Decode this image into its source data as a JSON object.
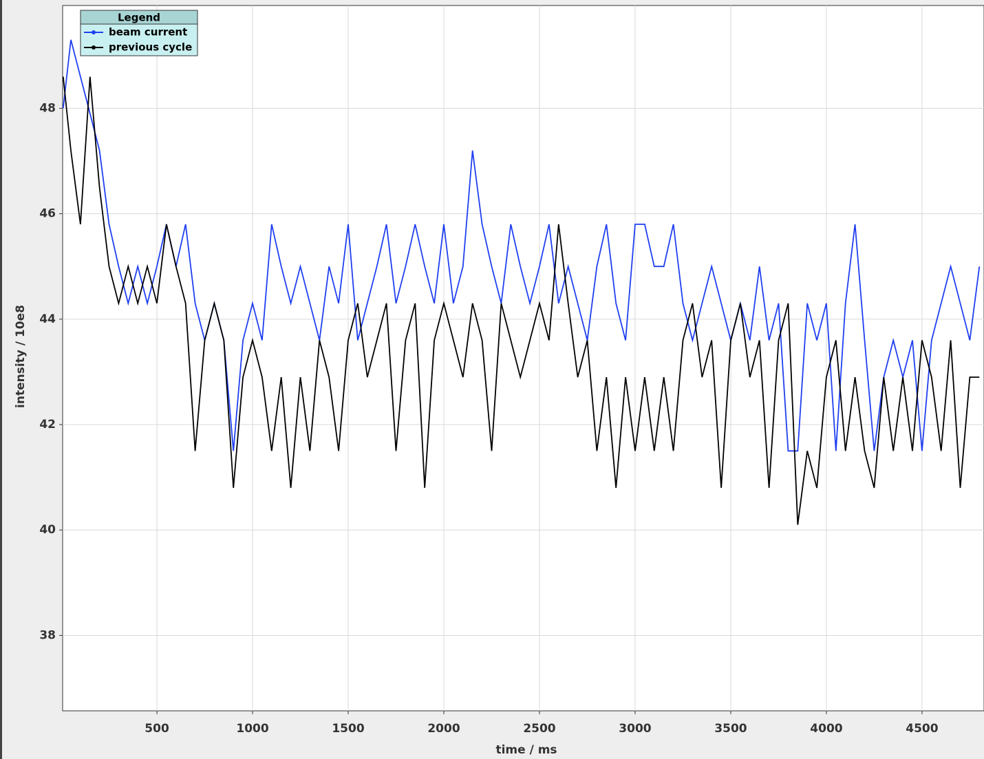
{
  "chart_data": {
    "type": "line",
    "x_label": "time / ms",
    "y_label": "intensity / 10e8",
    "legend_title": "Legend",
    "legend": "upper left",
    "grid": true,
    "xlim": [
      7,
      4824
    ],
    "ylim": [
      36.57,
      49.95
    ],
    "xticks": [
      500,
      1000,
      1500,
      2000,
      2500,
      3000,
      3500,
      4000,
      4500
    ],
    "yticks": [
      38,
      40,
      42,
      44,
      46,
      48
    ],
    "x": [
      10,
      50,
      100,
      150,
      200,
      250,
      300,
      350,
      400,
      450,
      500,
      550,
      600,
      650,
      700,
      750,
      800,
      850,
      900,
      950,
      1000,
      1050,
      1100,
      1150,
      1200,
      1250,
      1300,
      1350,
      1400,
      1450,
      1500,
      1550,
      1600,
      1650,
      1700,
      1750,
      1800,
      1850,
      1900,
      1950,
      2000,
      2050,
      2100,
      2150,
      2200,
      2250,
      2300,
      2350,
      2400,
      2450,
      2500,
      2550,
      2600,
      2650,
      2700,
      2750,
      2800,
      2850,
      2900,
      2950,
      3000,
      3050,
      3100,
      3150,
      3200,
      3250,
      3300,
      3350,
      3400,
      3450,
      3500,
      3550,
      3600,
      3650,
      3700,
      3750,
      3800,
      3850,
      3900,
      3950,
      4000,
      4050,
      4100,
      4150,
      4200,
      4250,
      4300,
      4350,
      4400,
      4450,
      4500,
      4550,
      4600,
      4650,
      4700,
      4750,
      4800
    ],
    "series": [
      {
        "name": "beam current",
        "color": "#1f3ff0",
        "values": [
          48.0,
          49.3,
          48.6,
          47.9,
          47.2,
          45.8,
          45.0,
          44.3,
          45.0,
          44.3,
          45.0,
          45.8,
          45.0,
          45.8,
          44.3,
          43.6,
          44.3,
          43.6,
          41.5,
          43.6,
          44.3,
          43.6,
          45.8,
          45.0,
          44.3,
          45.0,
          44.3,
          43.6,
          45.0,
          44.3,
          45.8,
          43.6,
          44.3,
          45.0,
          45.8,
          44.3,
          45.0,
          45.8,
          45.0,
          44.3,
          45.8,
          44.3,
          45.0,
          47.2,
          45.8,
          45.0,
          44.3,
          45.8,
          45.0,
          44.3,
          45.0,
          45.8,
          44.3,
          45.0,
          44.3,
          43.6,
          45.0,
          45.8,
          44.3,
          43.6,
          45.8,
          45.8,
          45.0,
          45.0,
          45.8,
          44.3,
          43.6,
          44.3,
          45.0,
          44.3,
          43.6,
          44.3,
          43.6,
          45.0,
          43.6,
          44.3,
          41.5,
          41.5,
          44.3,
          43.6,
          44.3,
          41.5,
          44.3,
          45.8,
          43.6,
          41.5,
          42.9,
          43.6,
          42.9,
          43.6,
          41.5,
          43.6,
          44.3,
          45.0,
          44.3,
          43.6,
          45.0
        ]
      },
      {
        "name": "previous cycle",
        "color": "#000000",
        "values": [
          48.6,
          47.2,
          45.8,
          48.6,
          46.5,
          45.0,
          44.3,
          45.0,
          44.3,
          45.0,
          44.3,
          45.8,
          45.0,
          44.3,
          41.5,
          43.6,
          44.3,
          43.6,
          40.8,
          42.9,
          43.6,
          42.9,
          41.5,
          42.9,
          40.8,
          42.9,
          41.5,
          43.6,
          42.9,
          41.5,
          43.6,
          44.3,
          42.9,
          43.6,
          44.3,
          41.5,
          43.6,
          44.3,
          40.8,
          43.6,
          44.3,
          43.6,
          42.9,
          44.3,
          43.6,
          41.5,
          44.3,
          43.6,
          42.9,
          43.6,
          44.3,
          43.6,
          45.8,
          44.3,
          42.9,
          43.6,
          41.5,
          42.9,
          40.8,
          42.9,
          41.5,
          42.9,
          41.5,
          42.9,
          41.5,
          43.6,
          44.3,
          42.9,
          43.6,
          40.8,
          43.6,
          44.3,
          42.9,
          43.6,
          40.8,
          43.6,
          44.3,
          40.1,
          41.5,
          40.8,
          42.9,
          43.6,
          41.5,
          42.9,
          41.5,
          40.8,
          42.9,
          41.5,
          42.9,
          41.5,
          43.6,
          42.9,
          41.5,
          43.6,
          40.8,
          42.9,
          42.9
        ]
      }
    ]
  }
}
